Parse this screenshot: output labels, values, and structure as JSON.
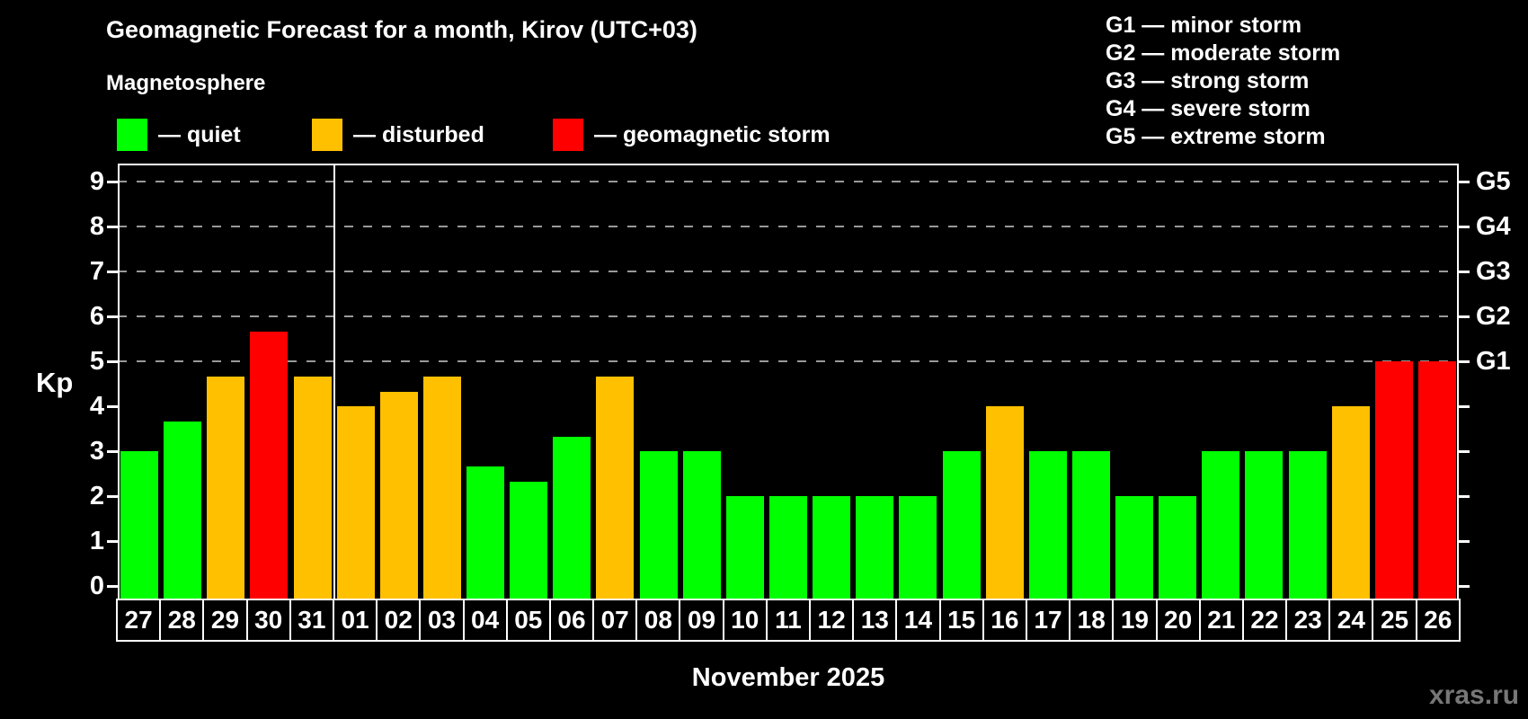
{
  "title": "Geomagnetic Forecast for a month, Kirov (UTC+03)",
  "subtitle": "Magnetosphere",
  "kp_axis_label": "Kp",
  "month_label": "November 2025",
  "watermark": "xras.ru",
  "legend": {
    "quiet": {
      "label": "— quiet",
      "color": "#00ff00"
    },
    "disturbed": {
      "label": "— disturbed",
      "color": "#ffc000"
    },
    "storm": {
      "label": "— geomagnetic storm",
      "color": "#ff0000"
    }
  },
  "g_legend": [
    "G1 — minor storm",
    "G2 — moderate storm",
    "G3 — strong storm",
    "G4 — severe storm",
    "G5 — extreme storm"
  ],
  "chart_data": {
    "type": "bar",
    "title": "Geomagnetic Forecast for a month, Kirov (UTC+03)",
    "xlabel": "November 2025",
    "ylabel": "Kp",
    "ylim": [
      -0.32,
      9.4
    ],
    "yticks": [
      0,
      1,
      2,
      3,
      4,
      5,
      6,
      7,
      8,
      9
    ],
    "gridlines_at": [
      5,
      6,
      7,
      8,
      9
    ],
    "grid": "dashed",
    "right_axis_labels": [
      {
        "kp": 5,
        "label": "G1"
      },
      {
        "kp": 6,
        "label": "G2"
      },
      {
        "kp": 7,
        "label": "G3"
      },
      {
        "kp": 8,
        "label": "G4"
      },
      {
        "kp": 9,
        "label": "G5"
      }
    ],
    "month_separator_after_index": 4,
    "categories": [
      "27",
      "28",
      "29",
      "30",
      "31",
      "01",
      "02",
      "03",
      "04",
      "05",
      "06",
      "07",
      "08",
      "09",
      "10",
      "11",
      "12",
      "13",
      "14",
      "15",
      "16",
      "17",
      "18",
      "19",
      "20",
      "21",
      "22",
      "23",
      "24",
      "25",
      "26"
    ],
    "values": [
      3,
      3.67,
      4.67,
      5.67,
      4.67,
      4,
      4.33,
      4.67,
      2.67,
      2.33,
      3.33,
      4.67,
      3,
      3,
      2,
      2,
      2,
      2,
      2,
      3,
      4,
      3,
      3,
      2,
      2,
      3,
      3,
      3,
      4,
      5,
      5
    ],
    "statuses": [
      "quiet",
      "quiet",
      "disturbed",
      "storm",
      "disturbed",
      "disturbed",
      "disturbed",
      "disturbed",
      "quiet",
      "quiet",
      "quiet",
      "disturbed",
      "quiet",
      "quiet",
      "quiet",
      "quiet",
      "quiet",
      "quiet",
      "quiet",
      "quiet",
      "disturbed",
      "quiet",
      "quiet",
      "quiet",
      "quiet",
      "quiet",
      "quiet",
      "quiet",
      "disturbed",
      "storm",
      "storm"
    ]
  },
  "colors": {
    "background": "#000000",
    "text": "#ffffff",
    "axis": "#ffffff",
    "gridline": "#999999",
    "quiet": "#00ff00",
    "disturbed": "#ffc000",
    "storm": "#ff0000",
    "watermark": "#777777"
  }
}
